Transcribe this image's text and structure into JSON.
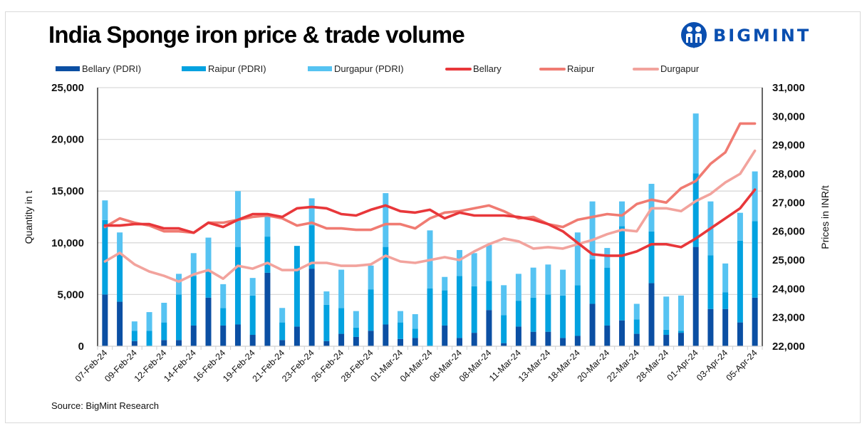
{
  "header": {
    "title": "India Sponge iron price & trade volume",
    "logo_text": "BIGMINT",
    "logo_icon": "bigmint-people-icon"
  },
  "footer": {
    "source": "Source: BigMint Research"
  },
  "colors": {
    "bellary_bar": "#0b4fa3",
    "raipur_bar": "#03a2e0",
    "durgapur_bar": "#56c3f2",
    "bellary_line": "#e8373a",
    "raipur_line": "#f07b72",
    "durgapur_line": "#f2a39d",
    "logo": "#0a4fb0",
    "grid": "#d9d9d9"
  },
  "legend": [
    {
      "label": "Bellary (PDRI)",
      "kind": "bar",
      "color_key": "bellary_bar"
    },
    {
      "label": "Raipur (PDRI)",
      "kind": "bar",
      "color_key": "raipur_bar"
    },
    {
      "label": "Durgapur (PDRI)",
      "kind": "bar",
      "color_key": "durgapur_bar"
    },
    {
      "label": "Bellary",
      "kind": "line",
      "color_key": "bellary_line"
    },
    {
      "label": "Raipur",
      "kind": "line",
      "color_key": "raipur_line"
    },
    {
      "label": "Durgapur",
      "kind": "line",
      "color_key": "durgapur_line"
    }
  ],
  "chart_data": {
    "type": "bar",
    "combo": "stacked-bar + line (secondary axis)",
    "title": "India Sponge iron price & trade volume",
    "xlabel": "",
    "ylabel": "Quantity in t",
    "y2label": "Prices in INR/t",
    "ylim": [
      0,
      25000
    ],
    "y2lim": [
      22000,
      31000
    ],
    "yticks": [
      "0",
      "5,000",
      "10,000",
      "15,000",
      "20,000",
      "25,000"
    ],
    "y2ticks": [
      "22,000",
      "23,000",
      "24,000",
      "25,000",
      "26,000",
      "27,000",
      "28,000",
      "29,000",
      "30,000",
      "31,000"
    ],
    "grid": true,
    "legend_position": "top",
    "point_count": 45,
    "x_tick_labels": [
      "07-Feb-24",
      "09-Feb-24",
      "12-Feb-24",
      "14-Feb-24",
      "16-Feb-24",
      "19-Feb-24",
      "21-Feb-24",
      "23-Feb-24",
      "26-Feb-24",
      "28-Feb-24",
      "01-Mar-24",
      "04-Mar-24",
      "06-Mar-24",
      "08-Mar-24",
      "11-Mar-24",
      "13-Mar-24",
      "18-Mar-24",
      "20-Mar-24",
      "22-Mar-24",
      "28-Mar-24",
      "01-Apr-24",
      "03-Apr-24",
      "05-Apr-24"
    ],
    "x_tick_every": 2,
    "bar_series": [
      {
        "name": "Bellary (PDRI)",
        "axis": "left",
        "color_key": "bellary_bar",
        "values": [
          5000,
          4300,
          500,
          0,
          600,
          600,
          2000,
          4700,
          2000,
          2100,
          1100,
          7100,
          600,
          1900,
          7500,
          500,
          1200,
          900,
          1500,
          2100,
          700,
          800,
          0,
          2000,
          800,
          1300,
          3500,
          300,
          1900,
          1400,
          1400,
          800,
          1000,
          4100,
          2000,
          2500,
          1200,
          6100,
          1100,
          1300,
          9600,
          3600,
          3600,
          2300,
          4700
        ]
      },
      {
        "name": "Raipur (PDRI)",
        "axis": "left",
        "color_key": "raipur_bar",
        "values": [
          7200,
          4700,
          1000,
          1500,
          1700,
          4400,
          4800,
          2500,
          1700,
          7500,
          3800,
          3500,
          1700,
          7800,
          4200,
          3500,
          2500,
          900,
          4000,
          7500,
          1600,
          900,
          5600,
          3400,
          6000,
          4500,
          2800,
          2700,
          2500,
          3300,
          3600,
          4100,
          4900,
          4300,
          5600,
          9100,
          1400,
          5000,
          500,
          200,
          7100,
          5200,
          1600,
          7900,
          7400
        ]
      },
      {
        "name": "Durgapur (PDRI)",
        "axis": "left",
        "color_key": "durgapur_bar",
        "values": [
          1900,
          2000,
          900,
          1800,
          1900,
          2000,
          2200,
          3300,
          2300,
          5400,
          1700,
          2200,
          1400,
          0,
          2600,
          1300,
          3700,
          1600,
          2300,
          5200,
          1100,
          1400,
          5600,
          1300,
          2500,
          3200,
          3500,
          2900,
          2600,
          2900,
          2900,
          2500,
          5100,
          5600,
          1900,
          2400,
          1500,
          4600,
          3200,
          3400,
          5800,
          5200,
          2800,
          2700,
          4800
        ]
      }
    ],
    "line_series": [
      {
        "name": "Bellary",
        "axis": "right",
        "color_key": "bellary_line",
        "values": [
          26200,
          26200,
          26250,
          26250,
          26100,
          26100,
          25950,
          26300,
          26150,
          26400,
          26600,
          26600,
          26500,
          26800,
          26850,
          26800,
          26600,
          26550,
          26750,
          26900,
          26700,
          26650,
          26750,
          26450,
          26650,
          26550,
          26550,
          26550,
          26500,
          26400,
          26250,
          26000,
          25600,
          25200,
          25150,
          25150,
          25300,
          25550,
          25550,
          25450,
          25750,
          26100,
          26450,
          26800,
          27450
        ]
      },
      {
        "name": "Raipur",
        "axis": "right",
        "color_key": "raipur_line",
        "values": [
          26150,
          26450,
          26300,
          26200,
          26000,
          26000,
          25950,
          26300,
          26300,
          26400,
          26500,
          26550,
          26450,
          26200,
          26300,
          26100,
          26100,
          26050,
          26050,
          26250,
          26250,
          26100,
          26450,
          26650,
          26700,
          26800,
          26900,
          26700,
          26450,
          26500,
          26250,
          26150,
          26400,
          26500,
          26600,
          26550,
          26950,
          27100,
          27000,
          27500,
          27750,
          28350,
          28750,
          29750,
          29750
        ]
      },
      {
        "name": "Durgapur",
        "axis": "right",
        "color_key": "durgapur_line",
        "values": [
          24950,
          25250,
          24850,
          24600,
          24450,
          24250,
          24500,
          24650,
          24350,
          24800,
          24700,
          24900,
          24650,
          24650,
          24900,
          24900,
          24800,
          24800,
          24850,
          25150,
          24950,
          24900,
          25000,
          25100,
          25000,
          25300,
          25550,
          25750,
          25650,
          25400,
          25450,
          25400,
          25550,
          25700,
          25900,
          26050,
          26000,
          26800,
          26800,
          26700,
          27050,
          27300,
          27700,
          28000,
          28800
        ]
      }
    ]
  }
}
